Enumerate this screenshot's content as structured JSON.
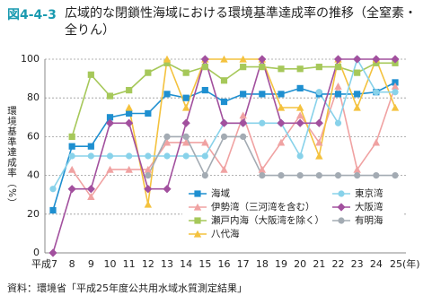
{
  "chart_data": {
    "type": "line",
    "figure_number": "図4-4-3",
    "title": "広域的な閉鎖性海域における環境基準達成率の推移（全窒素・全りん）",
    "y_label": "環境基準達成率（%）",
    "source": "資料：環境省「平成25年度公共用水域水質測定結果」",
    "categories": [
      "平成7",
      "8",
      "9",
      "10",
      "11",
      "12",
      "13",
      "14",
      "15",
      "16",
      "17",
      "18",
      "19",
      "20",
      "21",
      "22",
      "23",
      "24",
      "25(年)"
    ],
    "ylim": [
      0,
      100
    ],
    "yticks": [
      0,
      20,
      40,
      60,
      80,
      100
    ],
    "grid": true,
    "series": [
      {
        "name": "海域",
        "color": "#1e8fd0",
        "marker": "square",
        "values": [
          22,
          55,
          55,
          70,
          72,
          72,
          82,
          80,
          84,
          78,
          82,
          82,
          82,
          85,
          82,
          82,
          82,
          83,
          88
        ]
      },
      {
        "name": "伊勢湾（三河湾を含む）",
        "color": "#f0a2a2",
        "marker": "triangle",
        "values": [
          null,
          43,
          29,
          43,
          43,
          43,
          57,
          57,
          57,
          43,
          71,
          43,
          57,
          71,
          57,
          86,
          43,
          57,
          86
        ]
      },
      {
        "name": "瀬戸内海（大阪湾を除く）",
        "color": "#a6c85a",
        "marker": "square",
        "values": [
          null,
          60,
          92,
          81,
          84,
          93,
          98,
          93,
          96,
          89,
          96,
          96,
          95,
          95,
          96,
          96,
          93,
          98,
          98
        ]
      },
      {
        "name": "八代海",
        "color": "#f4c23e",
        "marker": "triangle",
        "values": [
          null,
          null,
          null,
          null,
          75,
          25,
          100,
          75,
          100,
          100,
          100,
          100,
          75,
          75,
          50,
          100,
          75,
          100,
          75
        ]
      },
      {
        "name": "東京湾",
        "color": "#88d2ea",
        "marker": "circle",
        "values": [
          33,
          50,
          50,
          50,
          50,
          50,
          50,
          50,
          50,
          67,
          67,
          67,
          67,
          50,
          83,
          67,
          100,
          83,
          83
        ]
      },
      {
        "name": "大阪湾",
        "color": "#a2509e",
        "marker": "diamond",
        "values": [
          0,
          33,
          33,
          67,
          67,
          33,
          33,
          67,
          100,
          67,
          67,
          100,
          67,
          67,
          67,
          100,
          100,
          100,
          100
        ]
      },
      {
        "name": "有明海",
        "color": "#a3abb3",
        "marker": "circle",
        "values": [
          null,
          null,
          null,
          null,
          null,
          40,
          60,
          60,
          40,
          60,
          60,
          40,
          40,
          40,
          40,
          40,
          40,
          40,
          40
        ]
      }
    ]
  }
}
